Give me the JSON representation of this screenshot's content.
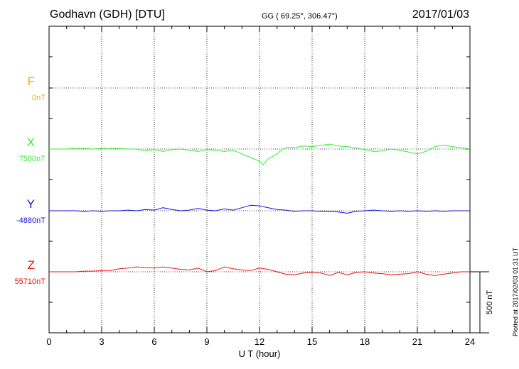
{
  "header": {
    "station": "Godhavn (GDH)  [DTU]",
    "coords": "GG ( 69.25°, 306.47°)",
    "date": "2017/01/03"
  },
  "footer": {
    "plotted": "Plotted at 2017/02/03 01:31  UT"
  },
  "chart_data": {
    "type": "line",
    "xlabel": "U T (hour)",
    "xlim": [
      0,
      24
    ],
    "xticks": [
      0,
      3,
      6,
      9,
      12,
      15,
      18,
      21,
      24
    ],
    "scale_label": "500 nT",
    "scale_nT": 500,
    "grid": true,
    "channels": [
      {
        "name": "F",
        "baseline": "0nT",
        "color": "#FFA500",
        "points": []
      },
      {
        "name": "X",
        "baseline": "7500nT",
        "color": "#33EE33",
        "points": [
          [
            0,
            0
          ],
          [
            0.5,
            0
          ],
          [
            1,
            0
          ],
          [
            1.5,
            5
          ],
          [
            2,
            5
          ],
          [
            2.5,
            0
          ],
          [
            3,
            5
          ],
          [
            3.5,
            5
          ],
          [
            4,
            5
          ],
          [
            4.5,
            0
          ],
          [
            5,
            0
          ],
          [
            5.5,
            -15
          ],
          [
            6,
            -5
          ],
          [
            6.5,
            -20
          ],
          [
            7,
            -5
          ],
          [
            7.5,
            0
          ],
          [
            8,
            -10
          ],
          [
            8.5,
            -20
          ],
          [
            9,
            -5
          ],
          [
            9.5,
            -10
          ],
          [
            10,
            -20
          ],
          [
            10.5,
            -10
          ],
          [
            11,
            -40
          ],
          [
            11.5,
            -70
          ],
          [
            12,
            -100
          ],
          [
            12.2,
            -130
          ],
          [
            12.5,
            -80
          ],
          [
            13,
            -40
          ],
          [
            13.3,
            0
          ],
          [
            13.7,
            15
          ],
          [
            14,
            10
          ],
          [
            14.5,
            25
          ],
          [
            15,
            20
          ],
          [
            15.5,
            30
          ],
          [
            16,
            40
          ],
          [
            16.5,
            25
          ],
          [
            17,
            20
          ],
          [
            17.5,
            10
          ],
          [
            18,
            -5
          ],
          [
            18.5,
            -20
          ],
          [
            19,
            -15
          ],
          [
            19.5,
            0
          ],
          [
            20,
            -10
          ],
          [
            20.5,
            -25
          ],
          [
            21,
            -40
          ],
          [
            21.5,
            -20
          ],
          [
            22,
            20
          ],
          [
            22.5,
            30
          ],
          [
            23,
            20
          ],
          [
            23.5,
            10
          ],
          [
            24,
            0
          ]
        ]
      },
      {
        "name": "Y",
        "baseline": "-4880nT",
        "color": "#1111DD",
        "points": [
          [
            0,
            0
          ],
          [
            0.5,
            0
          ],
          [
            1,
            0
          ],
          [
            1.5,
            0
          ],
          [
            2,
            -5
          ],
          [
            2.5,
            0
          ],
          [
            3,
            -5
          ],
          [
            3.5,
            0
          ],
          [
            4,
            0
          ],
          [
            4.5,
            5
          ],
          [
            5,
            0
          ],
          [
            5.5,
            10
          ],
          [
            6,
            5
          ],
          [
            6.5,
            25
          ],
          [
            7,
            10
          ],
          [
            7.5,
            0
          ],
          [
            8,
            5
          ],
          [
            8.5,
            20
          ],
          [
            9,
            5
          ],
          [
            9.5,
            0
          ],
          [
            10,
            15
          ],
          [
            10.5,
            5
          ],
          [
            11,
            25
          ],
          [
            11.5,
            45
          ],
          [
            12,
            40
          ],
          [
            12.3,
            30
          ],
          [
            12.5,
            25
          ],
          [
            13,
            10
          ],
          [
            13.5,
            5
          ],
          [
            14,
            -5
          ],
          [
            14.5,
            0
          ],
          [
            15,
            0
          ],
          [
            15.5,
            -5
          ],
          [
            16,
            -5
          ],
          [
            16.5,
            -10
          ],
          [
            17,
            -20
          ],
          [
            17.5,
            -5
          ],
          [
            18,
            0
          ],
          [
            18.5,
            5
          ],
          [
            19,
            0
          ],
          [
            19.5,
            -5
          ],
          [
            20,
            0
          ],
          [
            20.5,
            -5
          ],
          [
            21,
            0
          ],
          [
            21.5,
            -5
          ],
          [
            22,
            0
          ],
          [
            22.5,
            -5
          ],
          [
            23,
            0
          ],
          [
            23.5,
            0
          ],
          [
            24,
            0
          ]
        ]
      },
      {
        "name": "Z",
        "baseline": "55710nT",
        "color": "#EE1111",
        "points": [
          [
            0,
            0
          ],
          [
            0.5,
            0
          ],
          [
            1,
            0
          ],
          [
            1.5,
            0
          ],
          [
            2,
            5
          ],
          [
            2.5,
            5
          ],
          [
            3,
            10
          ],
          [
            3.5,
            10
          ],
          [
            4,
            25
          ],
          [
            4.5,
            30
          ],
          [
            5,
            40
          ],
          [
            5.5,
            35
          ],
          [
            6,
            30
          ],
          [
            6.5,
            40
          ],
          [
            7,
            30
          ],
          [
            7.5,
            20
          ],
          [
            8,
            15
          ],
          [
            8.5,
            30
          ],
          [
            9,
            0
          ],
          [
            9.5,
            10
          ],
          [
            10,
            40
          ],
          [
            10.5,
            25
          ],
          [
            11,
            15
          ],
          [
            11.5,
            10
          ],
          [
            12,
            30
          ],
          [
            12.5,
            20
          ],
          [
            13,
            0
          ],
          [
            13.5,
            -20
          ],
          [
            14,
            -25
          ],
          [
            14.5,
            -10
          ],
          [
            15,
            -5
          ],
          [
            15.5,
            -10
          ],
          [
            16,
            -30
          ],
          [
            16.5,
            -5
          ],
          [
            17,
            -25
          ],
          [
            17.5,
            -5
          ],
          [
            18,
            0
          ],
          [
            18.5,
            -10
          ],
          [
            19,
            -15
          ],
          [
            19.5,
            -25
          ],
          [
            20,
            -20
          ],
          [
            20.5,
            -15
          ],
          [
            21,
            0
          ],
          [
            21.5,
            -20
          ],
          [
            22,
            -30
          ],
          [
            22.5,
            -20
          ],
          [
            23,
            -10
          ],
          [
            23.5,
            0
          ],
          [
            24,
            0
          ]
        ]
      }
    ]
  }
}
